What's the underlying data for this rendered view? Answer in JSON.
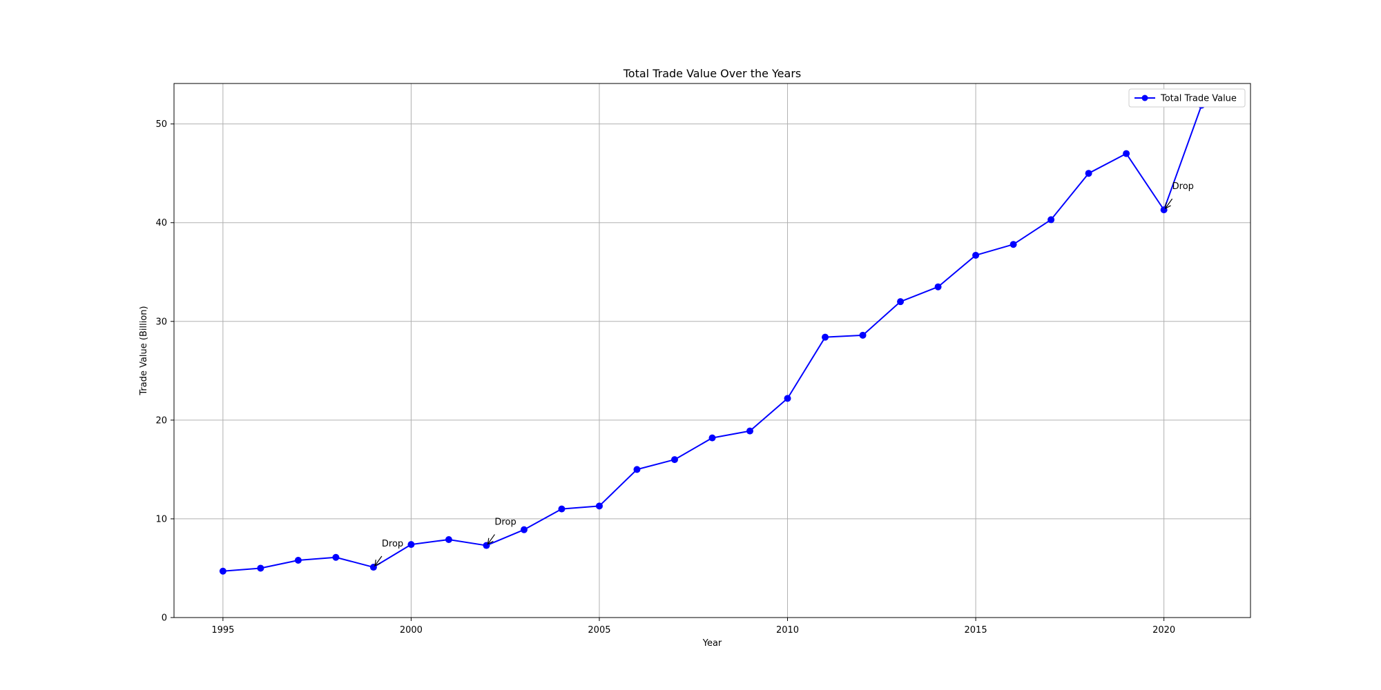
{
  "chart_data": {
    "type": "line",
    "title": "Total Trade Value Over the Years",
    "xlabel": "Year",
    "ylabel": "Trade Value (Billion)",
    "xlim": [
      1993.7,
      2022.3
    ],
    "ylim": [
      0,
      54.1
    ],
    "xticks": [
      1995,
      2000,
      2005,
      2010,
      2015,
      2020
    ],
    "yticks": [
      0,
      10,
      20,
      30,
      40,
      50
    ],
    "grid": true,
    "legend_position": "top-right",
    "series": [
      {
        "name": "Total Trade Value",
        "color": "#0000ff",
        "marker": "circle",
        "x": [
          1995,
          1996,
          1997,
          1998,
          1999,
          2000,
          2001,
          2002,
          2003,
          2004,
          2005,
          2006,
          2007,
          2008,
          2009,
          2010,
          2011,
          2012,
          2013,
          2014,
          2015,
          2016,
          2017,
          2018,
          2019,
          2020,
          2021
        ],
        "values": [
          4.7,
          5.0,
          5.8,
          6.1,
          5.1,
          7.4,
          7.9,
          7.3,
          8.9,
          11.0,
          11.3,
          15.0,
          16.0,
          18.2,
          18.9,
          22.2,
          28.4,
          28.6,
          32.0,
          33.5,
          36.7,
          37.8,
          40.3,
          45.0,
          47.0,
          41.3,
          51.9
        ]
      }
    ],
    "annotations": [
      {
        "text": "Drop",
        "x": 1999,
        "y": 5.1
      },
      {
        "text": "Drop",
        "x": 2002,
        "y": 7.3
      },
      {
        "text": "Drop",
        "x": 2020,
        "y": 41.3
      }
    ]
  }
}
